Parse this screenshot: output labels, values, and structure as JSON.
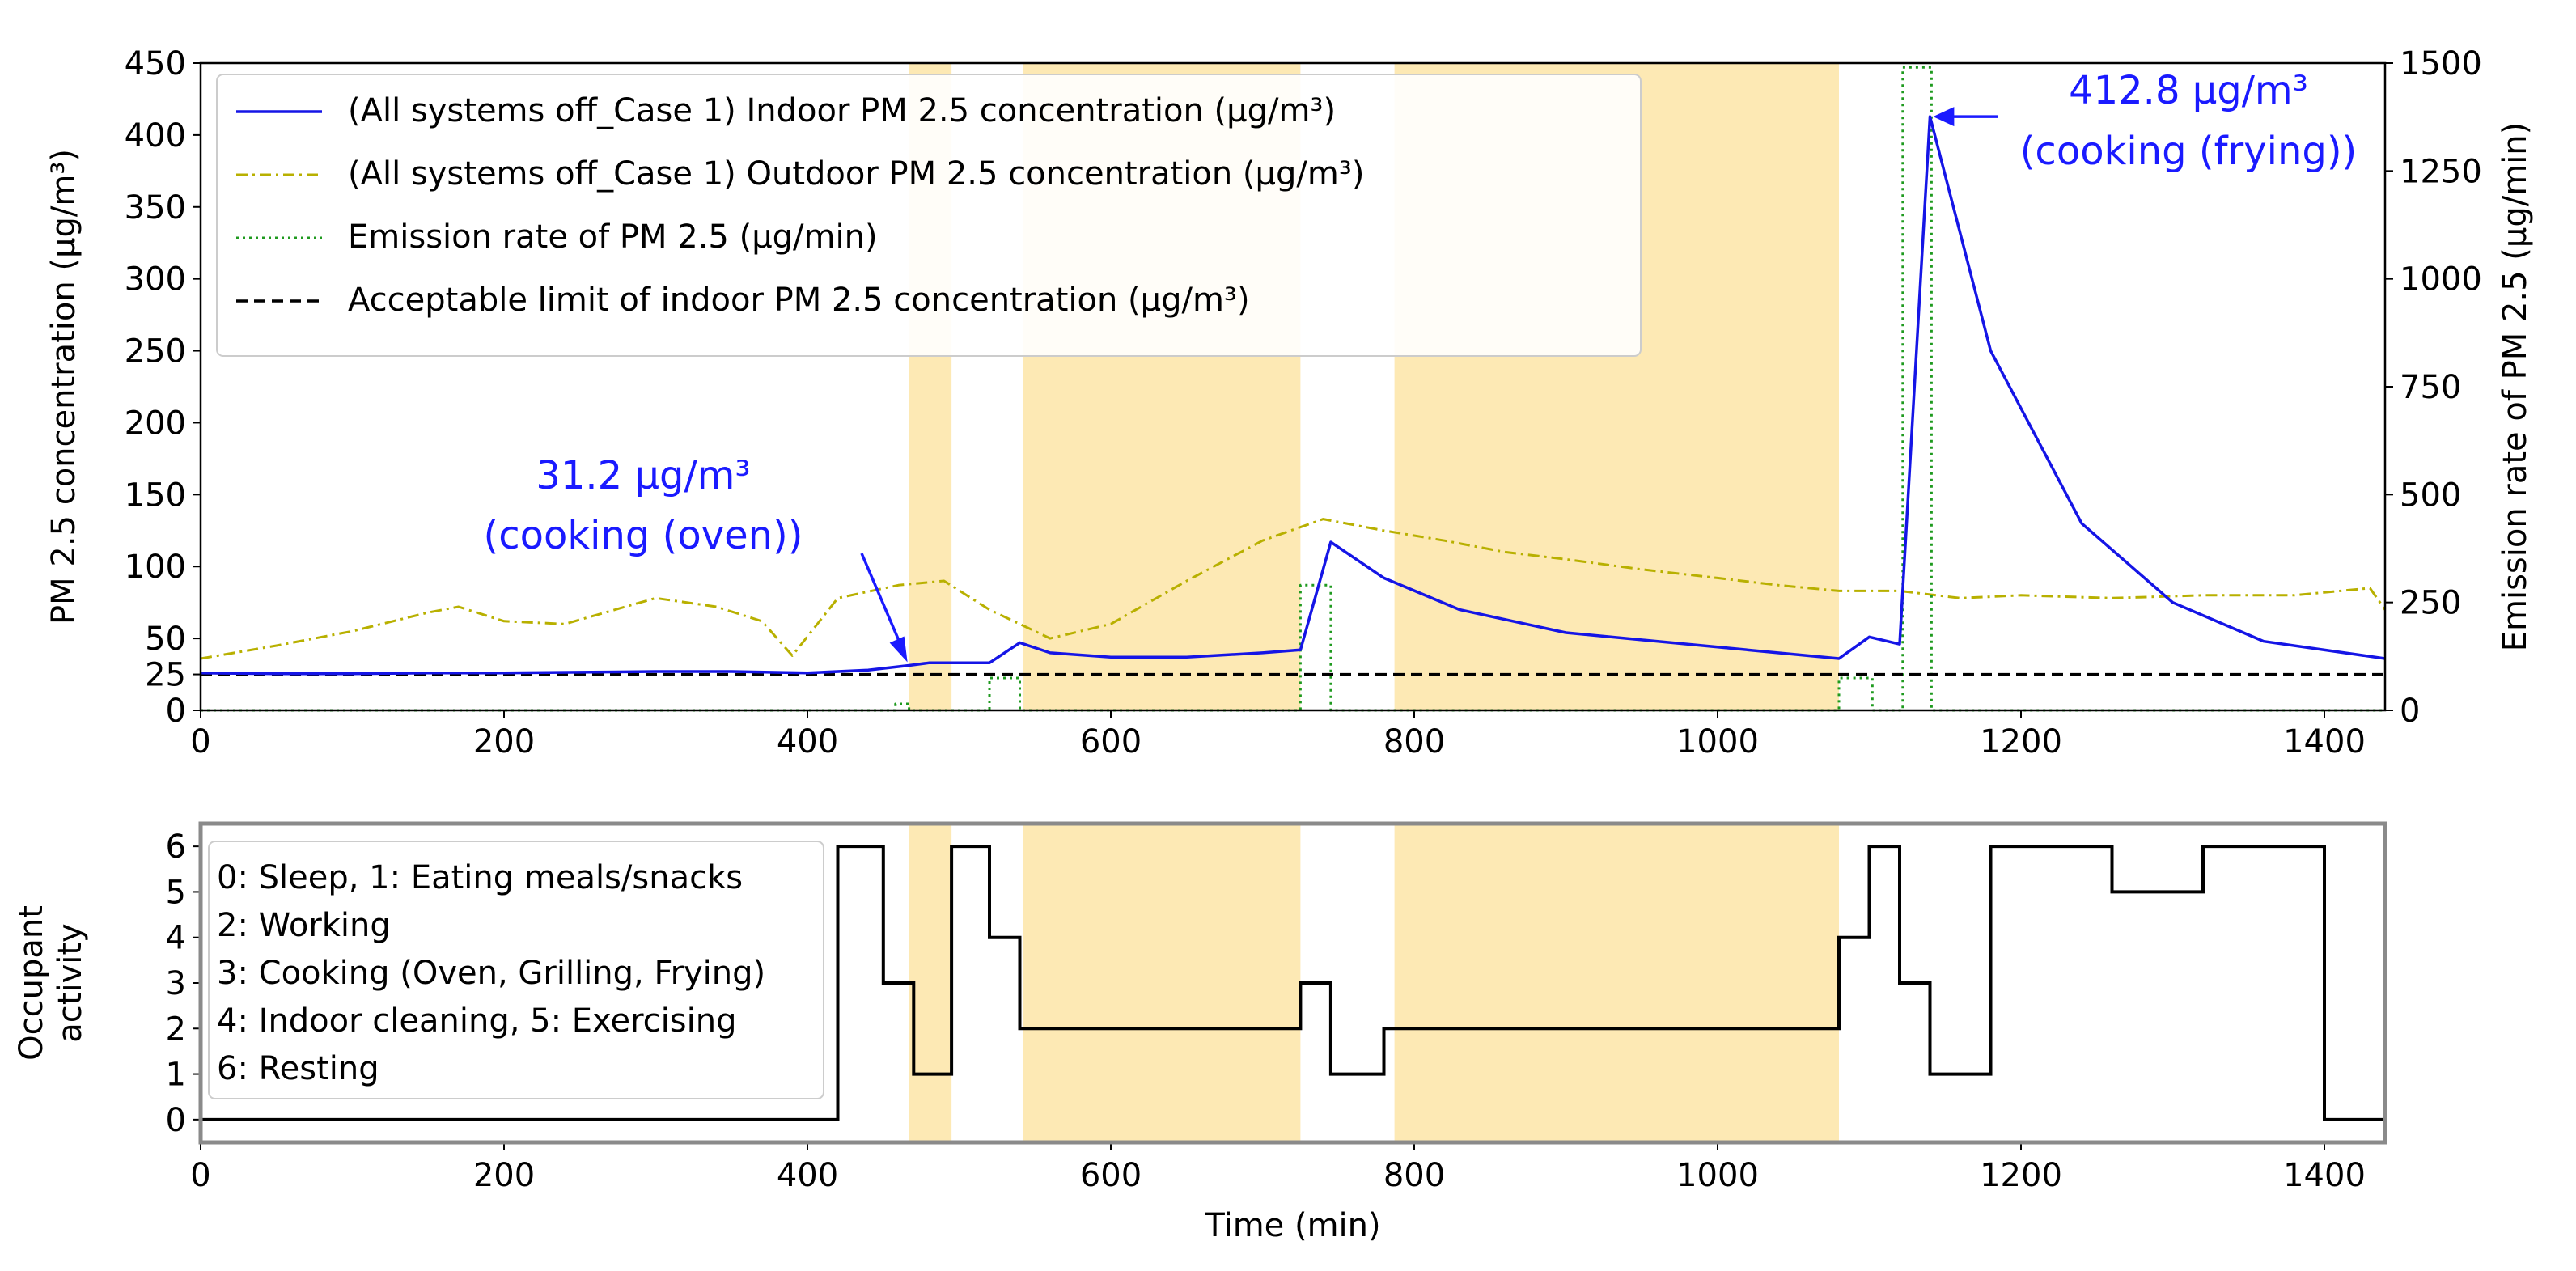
{
  "figure": {
    "description_labels": [
      "top-panel",
      "bottom-panel"
    ]
  },
  "colors": {
    "indoor": "#1515e6",
    "outdoor": "#b8b000",
    "emission": "#1f9a1f",
    "limit": "#000000",
    "activity": "#000000",
    "highlight": "#fde9b4",
    "annotation": "#1a1aff",
    "axis": "#000000",
    "frame_bottom": "#8a8a8a"
  },
  "chart_data": [
    {
      "type": "line",
      "panel": "top",
      "xlabel": "",
      "ylabel_left": "PM 2.5 concentration (μg/m³)",
      "ylabel_right": "Emission rate of PM 2.5 (μg/min)",
      "xlim": [
        0,
        1440
      ],
      "ylim_left": [
        0,
        450
      ],
      "ylim_right": [
        0,
        1500
      ],
      "xticks": [
        "0",
        "200",
        "400",
        "600",
        "800",
        "1000",
        "1200",
        "1400"
      ],
      "xtick_values": [
        0,
        200,
        400,
        600,
        800,
        1000,
        1200,
        1400
      ],
      "yticks_left": [
        "0",
        "25",
        "50",
        "100",
        "150",
        "200",
        "250",
        "300",
        "350",
        "400",
        "450"
      ],
      "ytick_values_left": [
        0,
        25,
        50,
        100,
        150,
        200,
        250,
        300,
        350,
        400,
        450
      ],
      "yticks_right": [
        "0",
        "250",
        "500",
        "750",
        "1000",
        "1250",
        "1500"
      ],
      "ytick_values_right": [
        0,
        250,
        500,
        750,
        1000,
        1250,
        1500
      ],
      "shaded_intervals": [
        [
          467,
          495
        ],
        [
          542,
          725
        ],
        [
          787,
          1080
        ]
      ],
      "legend": [
        {
          "text": "(All systems off_Case 1) Indoor PM 2.5 concentration (μg/m³)",
          "series": "indoor"
        },
        {
          "text": "(All systems off_Case 1) Outdoor PM 2.5 concentration (μg/m³)",
          "series": "outdoor"
        },
        {
          "text": "Emission rate of PM 2.5 (μg/min)",
          "series": "emission"
        },
        {
          "text": "Acceptable limit of indoor PM 2.5 concentration (μg/m³)",
          "series": "limit"
        }
      ],
      "series": [
        {
          "name": "indoor",
          "axis": "left",
          "style": "solid",
          "x": [
            0,
            50,
            100,
            150,
            200,
            250,
            300,
            350,
            400,
            440,
            467,
            480,
            520,
            540,
            560,
            600,
            650,
            700,
            725,
            745,
            780,
            830,
            900,
            1000,
            1080,
            1100,
            1120,
            1140,
            1180,
            1240,
            1300,
            1360,
            1440
          ],
          "values": [
            26,
            25.5,
            25.5,
            26,
            26,
            26.5,
            27,
            27,
            26,
            28,
            31.2,
            33,
            33,
            47,
            40,
            37,
            37,
            40,
            42,
            117,
            92,
            70,
            54,
            44,
            36,
            51,
            46,
            412.8,
            250,
            130,
            75,
            48,
            36
          ]
        },
        {
          "name": "outdoor",
          "axis": "left",
          "style": "dashdot",
          "x": [
            0,
            50,
            100,
            150,
            170,
            200,
            240,
            300,
            340,
            370,
            390,
            420,
            460,
            490,
            520,
            560,
            600,
            650,
            700,
            740,
            780,
            820,
            860,
            900,
            950,
            1000,
            1040,
            1080,
            1120,
            1160,
            1200,
            1260,
            1320,
            1380,
            1430,
            1440
          ],
          "values": [
            36,
            45,
            55,
            68,
            72,
            62,
            60,
            78,
            72,
            62,
            38,
            78,
            87,
            90,
            70,
            50,
            60,
            90,
            118,
            133,
            125,
            118,
            110,
            105,
            98,
            92,
            87,
            83,
            83,
            78,
            80,
            78,
            80,
            80,
            85,
            70
          ]
        },
        {
          "name": "emission",
          "axis": "right",
          "style": "dotted",
          "x": [
            0,
            458,
            458,
            467,
            467,
            520,
            520,
            540,
            540,
            725,
            725,
            745,
            745,
            1080,
            1080,
            1102,
            1102,
            1122,
            1122,
            1141,
            1141,
            1440
          ],
          "values": [
            0,
            0,
            15,
            15,
            0,
            0,
            75,
            75,
            0,
            0,
            290,
            290,
            0,
            0,
            75,
            75,
            0,
            0,
            1490,
            1490,
            0,
            0
          ]
        },
        {
          "name": "limit",
          "axis": "left",
          "style": "dashed",
          "x": [
            0,
            1440
          ],
          "values": [
            25,
            25
          ]
        }
      ],
      "annotations": [
        {
          "value_text": "31.2  μg/m³",
          "label_text": "(cooking (oven))",
          "point": [
            467,
            31.2
          ]
        },
        {
          "value_text": "412.8  μg/m³",
          "label_text": "(cooking (frying))",
          "point": [
            1141,
            412.8
          ]
        }
      ]
    },
    {
      "type": "line",
      "panel": "bottom",
      "xlabel": "Time (min)",
      "ylabel": "Occupant activity",
      "ylabel_lines": [
        "Occupant",
        "activity"
      ],
      "xlim": [
        0,
        1440
      ],
      "ylim": [
        -0.5,
        6.5
      ],
      "xticks": [
        "0",
        "200",
        "400",
        "600",
        "800",
        "1000",
        "1200",
        "1400"
      ],
      "xtick_values": [
        0,
        200,
        400,
        600,
        800,
        1000,
        1200,
        1400
      ],
      "yticks": [
        "0",
        "1",
        "2",
        "3",
        "4",
        "5",
        "6"
      ],
      "ytick_values": [
        0,
        1,
        2,
        3,
        4,
        5,
        6
      ],
      "shaded_intervals": [
        [
          467,
          495
        ],
        [
          542,
          725
        ],
        [
          787,
          1080
        ]
      ],
      "legend_text": [
        "0: Sleep, 1: Eating meals/snacks",
        "2: Working",
        "3: Cooking (Oven, Grilling, Frying)",
        "4: Indoor cleaning, 5: Exercising",
        "6: Resting"
      ],
      "series": [
        {
          "name": "activity",
          "style": "step",
          "x": [
            0,
            420,
            450,
            470,
            495,
            520,
            540,
            725,
            745,
            780,
            1080,
            1100,
            1120,
            1140,
            1180,
            1260,
            1320,
            1400,
            1440
          ],
          "values": [
            0,
            6,
            3,
            1,
            6,
            4,
            2,
            3,
            1,
            2,
            4,
            6,
            3,
            1,
            6,
            5,
            6,
            0,
            0
          ]
        }
      ]
    }
  ]
}
